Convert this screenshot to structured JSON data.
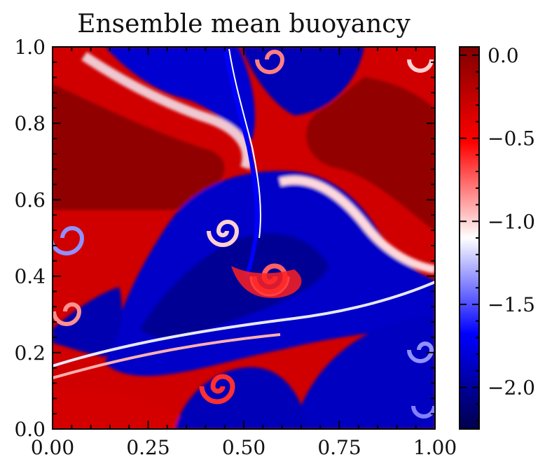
{
  "chart_data": {
    "type": "heatmap",
    "title": "Ensemble mean buoyancy",
    "xlabel": "",
    "ylabel": "",
    "xlim": [
      0.0,
      1.0
    ],
    "ylim": [
      0.0,
      1.0
    ],
    "x_ticks": [
      "0.00",
      "0.25",
      "0.50",
      "0.75",
      "1.00"
    ],
    "x_tick_values": [
      0.0,
      0.25,
      0.5,
      0.75,
      1.0
    ],
    "y_ticks": [
      "0.0",
      "0.2",
      "0.4",
      "0.6",
      "0.8",
      "1.0"
    ],
    "y_tick_values": [
      0.0,
      0.2,
      0.4,
      0.6,
      0.8,
      1.0
    ],
    "colormap": "seismic (dark blue → blue → white → red → dark red)",
    "colorbar": {
      "range": [
        -2.25,
        0.05
      ],
      "ticks": [
        "0.0",
        "−0.5",
        "−1.0",
        "−1.5",
        "−2.0"
      ],
      "tick_values": [
        0.0,
        -0.5,
        -1.0,
        -1.5,
        -2.0
      ]
    },
    "field_summary": "Turbulent mixing of a red (≈0.0) fluid and a blue (≈−2.2) fluid with Kelvin–Helmholtz-like roll-ups; a thin white interface band runs from lower-left (0,0.17) to right (1,0.40)."
  },
  "colors": {
    "cmap_darkblue": "#00004c",
    "cmap_blue": "#0000ff",
    "cmap_white": "#ffffff",
    "cmap_red": "#ff0000",
    "cmap_darkred": "#800000"
  }
}
